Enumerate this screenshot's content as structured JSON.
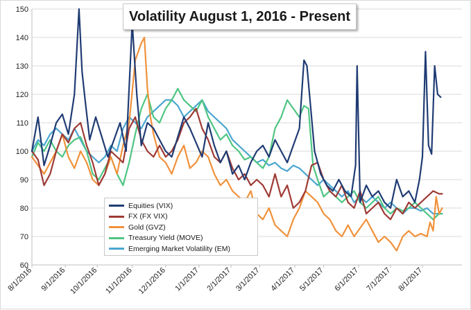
{
  "chart_data": {
    "type": "line",
    "title": "Volatility August 1, 2016 - Present",
    "ylim": [
      60,
      150
    ],
    "yticks": [
      60,
      70,
      80,
      90,
      100,
      110,
      120,
      130,
      140,
      150
    ],
    "xlim": [
      0,
      283
    ],
    "xticks": [
      {
        "label": "8/1/2016",
        "x": 0
      },
      {
        "label": "9/1/2016",
        "x": 22
      },
      {
        "label": "10/1/2016",
        "x": 43
      },
      {
        "label": "11/1/2016",
        "x": 66
      },
      {
        "label": "12/1/2016",
        "x": 88
      },
      {
        "label": "1/1/2017",
        "x": 110
      },
      {
        "label": "2/1/2017",
        "x": 131
      },
      {
        "label": "3/1/2017",
        "x": 150
      },
      {
        "label": "4/1/2017",
        "x": 173
      },
      {
        "label": "5/1/2017",
        "x": 192
      },
      {
        "label": "6/1/2017",
        "x": 215
      },
      {
        "label": "7/1/2017",
        "x": 236
      },
      {
        "label": "8/1/2017",
        "x": 257
      }
    ],
    "grid": true,
    "legend_position": "lower-left",
    "series": [
      {
        "name": "Equities (VIX)",
        "color": "#1f3b73",
        "x": [
          0,
          4,
          8,
          12,
          16,
          20,
          24,
          28,
          31,
          33,
          35,
          38,
          42,
          46,
          50,
          54,
          58,
          62,
          66,
          69,
          72,
          76,
          80,
          84,
          88,
          92,
          96,
          100,
          104,
          108,
          112,
          116,
          120,
          124,
          128,
          132,
          136,
          140,
          144,
          148,
          152,
          156,
          160,
          164,
          168,
          172,
          176,
          179,
          181,
          183,
          186,
          190,
          194,
          198,
          202,
          206,
          210,
          213,
          214,
          216,
          220,
          224,
          228,
          232,
          236,
          240,
          244,
          248,
          252,
          255,
          257,
          259,
          261,
          263,
          265,
          267,
          269
        ],
        "y": [
          100,
          112,
          95,
          102,
          110,
          113,
          106,
          120,
          150,
          128,
          118,
          104,
          112,
          105,
          98,
          104,
          110,
          100,
          145,
          120,
          102,
          110,
          108,
          104,
          100,
          98,
          105,
          112,
          108,
          103,
          98,
          110,
          102,
          96,
          100,
          92,
          95,
          90,
          96,
          100,
          102,
          98,
          104,
          100,
          96,
          102,
          108,
          132,
          130,
          118,
          100,
          92,
          88,
          86,
          90,
          86,
          84,
          95,
          130,
          82,
          88,
          84,
          86,
          82,
          80,
          90,
          84,
          86,
          82,
          90,
          98,
          135,
          102,
          99,
          130,
          120,
          119
        ]
      },
      {
        "name": "FX (FX VIX)",
        "color": "#9e3a35",
        "x": [
          0,
          4,
          8,
          12,
          16,
          20,
          24,
          28,
          32,
          36,
          40,
          44,
          48,
          52,
          56,
          60,
          64,
          68,
          72,
          76,
          80,
          84,
          88,
          92,
          96,
          100,
          104,
          108,
          112,
          116,
          120,
          124,
          128,
          132,
          136,
          140,
          144,
          148,
          152,
          156,
          160,
          164,
          168,
          172,
          176,
          180,
          184,
          188,
          192,
          196,
          200,
          204,
          208,
          212,
          216,
          220,
          224,
          228,
          232,
          236,
          240,
          244,
          248,
          252,
          256,
          260,
          264,
          268,
          270
        ],
        "y": [
          100,
          97,
          88,
          92,
          100,
          106,
          103,
          108,
          110,
          102,
          96,
          88,
          92,
          100,
          98,
          96,
          108,
          112,
          104,
          100,
          98,
          102,
          98,
          100,
          104,
          110,
          112,
          115,
          108,
          104,
          98,
          96,
          100,
          94,
          90,
          92,
          88,
          90,
          88,
          84,
          92,
          84,
          88,
          80,
          82,
          86,
          95,
          96,
          90,
          86,
          84,
          88,
          82,
          80,
          86,
          78,
          80,
          82,
          78,
          76,
          80,
          78,
          82,
          80,
          82,
          84,
          86,
          85,
          85
        ]
      },
      {
        "name": "Gold (GVZ)",
        "color": "#f0913a",
        "x": [
          0,
          4,
          8,
          12,
          16,
          20,
          24,
          28,
          32,
          36,
          40,
          44,
          48,
          52,
          56,
          60,
          64,
          68,
          72,
          74,
          76,
          78,
          80,
          84,
          88,
          92,
          96,
          100,
          104,
          108,
          112,
          116,
          120,
          124,
          128,
          132,
          136,
          140,
          144,
          148,
          152,
          156,
          160,
          164,
          168,
          172,
          176,
          180,
          184,
          188,
          192,
          196,
          200,
          204,
          208,
          212,
          216,
          220,
          224,
          228,
          232,
          236,
          240,
          244,
          248,
          252,
          256,
          260,
          262,
          264,
          266,
          268,
          270
        ],
        "y": [
          98,
          95,
          92,
          96,
          100,
          106,
          98,
          94,
          100,
          96,
          90,
          88,
          92,
          98,
          92,
          102,
          110,
          132,
          138,
          140,
          122,
          112,
          106,
          98,
          96,
          92,
          98,
          102,
          94,
          96,
          100,
          98,
          92,
          88,
          90,
          86,
          84,
          82,
          86,
          78,
          76,
          80,
          74,
          72,
          70,
          76,
          80,
          86,
          84,
          82,
          78,
          76,
          72,
          70,
          74,
          70,
          73,
          76,
          72,
          68,
          70,
          68,
          65,
          70,
          72,
          70,
          71,
          70,
          75,
          72,
          84,
          78,
          80
        ]
      },
      {
        "name": "Treasury Yield (MOVE)",
        "color": "#4ec582",
        "x": [
          0,
          4,
          8,
          12,
          16,
          20,
          24,
          28,
          32,
          36,
          40,
          44,
          48,
          52,
          56,
          60,
          64,
          68,
          72,
          76,
          80,
          84,
          88,
          92,
          96,
          100,
          104,
          108,
          112,
          116,
          120,
          124,
          128,
          132,
          136,
          140,
          144,
          148,
          152,
          156,
          160,
          164,
          168,
          172,
          176,
          179,
          182,
          185,
          188,
          192,
          196,
          200,
          204,
          208,
          212,
          216,
          220,
          224,
          228,
          232,
          236,
          240,
          244,
          248,
          252,
          256,
          260,
          264,
          268,
          270
        ],
        "y": [
          98,
          103,
          100,
          104,
          100,
          98,
          102,
          104,
          105,
          100,
          92,
          90,
          94,
          98,
          92,
          88,
          96,
          106,
          115,
          120,
          112,
          110,
          115,
          118,
          122,
          118,
          116,
          114,
          118,
          112,
          108,
          104,
          106,
          102,
          100,
          97,
          98,
          96,
          94,
          98,
          108,
          112,
          118,
          115,
          112,
          116,
          115,
          95,
          90,
          84,
          86,
          84,
          82,
          84,
          86,
          82,
          80,
          82,
          84,
          80,
          78,
          80,
          79,
          80,
          82,
          80,
          78,
          76,
          78,
          78
        ]
      },
      {
        "name": "Emerging Market Volatility (EM)",
        "color": "#4aa6cf",
        "x": [
          0,
          4,
          8,
          12,
          16,
          20,
          24,
          28,
          32,
          36,
          40,
          44,
          48,
          52,
          56,
          60,
          64,
          68,
          72,
          76,
          80,
          84,
          88,
          92,
          96,
          100,
          104,
          108,
          112,
          116,
          120,
          124,
          128,
          132,
          136,
          140,
          144,
          148,
          152,
          156,
          160,
          164,
          168,
          172,
          176,
          180,
          184,
          188,
          192,
          196,
          200,
          204,
          208,
          212,
          216,
          220,
          224,
          228,
          232,
          236,
          240,
          244,
          248,
          252,
          256,
          260,
          264,
          268,
          270
        ],
        "y": [
          100,
          104,
          102,
          106,
          108,
          106,
          104,
          108,
          104,
          100,
          98,
          96,
          98,
          102,
          100,
          108,
          112,
          110,
          108,
          112,
          114,
          116,
          118,
          118,
          116,
          112,
          114,
          116,
          118,
          114,
          112,
          110,
          108,
          104,
          102,
          100,
          98,
          96,
          97,
          95,
          96,
          94,
          93,
          95,
          94,
          92,
          90,
          88,
          90,
          88,
          86,
          84,
          86,
          82,
          84,
          82,
          84,
          82,
          80,
          82,
          80,
          78,
          80,
          80,
          79,
          80,
          78,
          78,
          78
        ]
      }
    ]
  }
}
